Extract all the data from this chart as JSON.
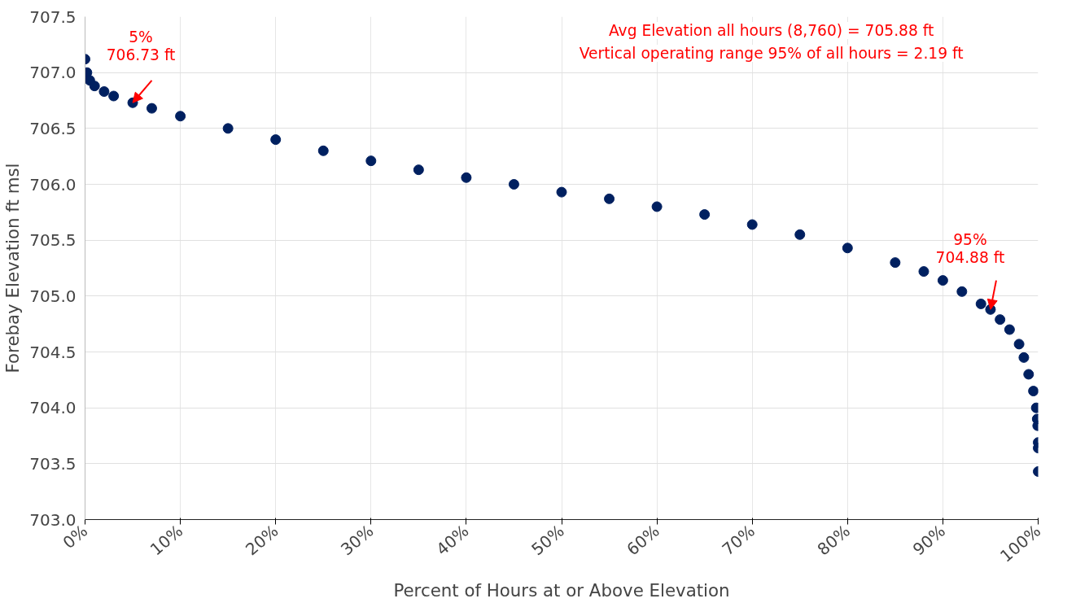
{
  "chart_data": {
    "type": "scatter",
    "xlabel": "Percent of Hours at or Above Elevation",
    "ylabel": "Forebay Elevation ft msl",
    "x": [
      0,
      0.2,
      0.5,
      1,
      2,
      3,
      5,
      7,
      10,
      15,
      20,
      25,
      30,
      35,
      40,
      45,
      50,
      55,
      60,
      65,
      70,
      75,
      80,
      85,
      88,
      90,
      92,
      94,
      95,
      96,
      97,
      98,
      98.5,
      99,
      99.5,
      99.8,
      99.9,
      99.95,
      100,
      100,
      100
    ],
    "series": [
      {
        "color": "#002060",
        "values": [
          707.12,
          707.0,
          706.93,
          706.88,
          706.83,
          706.79,
          706.73,
          706.68,
          706.61,
          706.5,
          706.4,
          706.3,
          706.21,
          706.13,
          706.06,
          706.0,
          705.93,
          705.87,
          705.8,
          705.73,
          705.64,
          705.55,
          705.43,
          705.3,
          705.22,
          705.14,
          705.04,
          704.93,
          704.88,
          704.79,
          704.7,
          704.57,
          704.45,
          704.3,
          704.15,
          704.0,
          703.9,
          703.84,
          703.69,
          703.64,
          703.43
        ]
      }
    ],
    "marker": "circle",
    "grid": true,
    "xlim": [
      0,
      100
    ],
    "xticks": [
      {
        "value": 0,
        "label": "0%"
      },
      {
        "value": 10,
        "label": "10%"
      },
      {
        "value": 20,
        "label": "20%"
      },
      {
        "value": 30,
        "label": "30%"
      },
      {
        "value": 40,
        "label": "40%"
      },
      {
        "value": 50,
        "label": "50%"
      },
      {
        "value": 60,
        "label": "60%"
      },
      {
        "value": 70,
        "label": "70%"
      },
      {
        "value": 80,
        "label": "80%"
      },
      {
        "value": 90,
        "label": "90%"
      },
      {
        "value": 100,
        "label": "100%"
      }
    ],
    "ylim": [
      703.0,
      707.5
    ],
    "yticks": [
      {
        "value": 703,
        "label": "703.0"
      },
      {
        "value": 703.5,
        "label": "703.5"
      },
      {
        "value": 704,
        "label": "704.0"
      },
      {
        "value": 704.5,
        "label": "704.5"
      },
      {
        "value": 705,
        "label": "705.0"
      },
      {
        "value": 705.5,
        "label": "705.5"
      },
      {
        "value": 706,
        "label": "706.0"
      },
      {
        "value": 706.5,
        "label": "706.5"
      },
      {
        "value": 707,
        "label": "707.0"
      },
      {
        "value": 707.5,
        "label": "707.5"
      }
    ],
    "annotations": [
      {
        "text": "5%\n706.73 ft",
        "x": 5,
        "y": 706.73
      },
      {
        "text": "95%\n704.88 ft",
        "x": 95,
        "y": 704.88
      },
      "Avg Elevation all hours (8,760) = 705.88 ft",
      "Vertical operating range 95% of all hours = 2.19 ft"
    ]
  }
}
